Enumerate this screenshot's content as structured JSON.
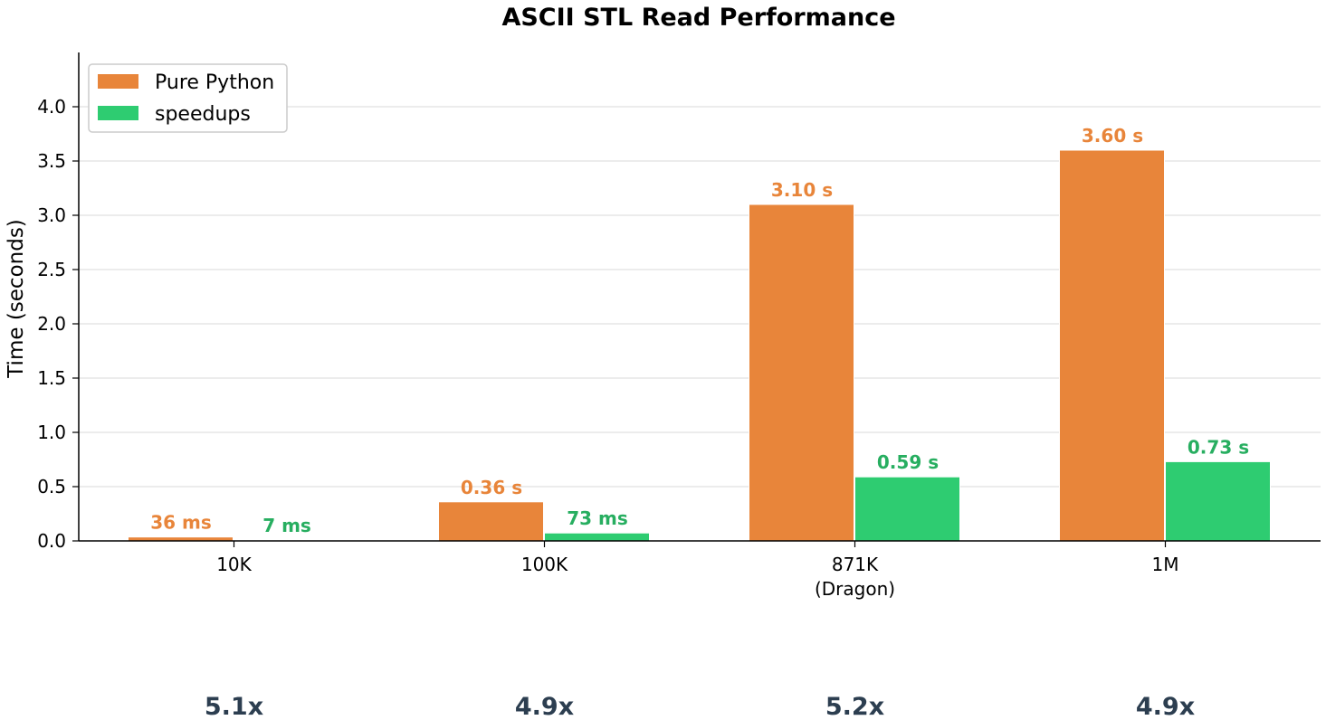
{
  "chart_data": {
    "type": "bar",
    "title": "ASCII STL Read Performance",
    "ylabel": "Time (seconds)",
    "xlabel": "",
    "ylim": [
      0,
      4.5
    ],
    "yticks": [
      "0.0",
      "0.5",
      "1.0",
      "1.5",
      "2.0",
      "2.5",
      "3.0",
      "3.5",
      "4.0"
    ],
    "categories": [
      "10K",
      "100K",
      "871K\n(Dragon)",
      "1M"
    ],
    "series": [
      {
        "name": "Pure Python",
        "color": "#e8853a",
        "values": [
          0.036,
          0.36,
          3.1,
          3.6
        ],
        "labels": [
          "36 ms",
          "0.36 s",
          "3.10 s",
          "3.60 s"
        ]
      },
      {
        "name": "speedups",
        "color": "#2ecc71",
        "label_color": "#27ae60",
        "values": [
          0.007,
          0.073,
          0.59,
          0.73
        ],
        "labels": [
          "7 ms",
          "73 ms",
          "0.59 s",
          "0.73 s"
        ]
      }
    ],
    "speedups": [
      "5.1x",
      "4.9x",
      "5.2x",
      "4.9x"
    ],
    "grid": "y",
    "legend": "top-left"
  }
}
